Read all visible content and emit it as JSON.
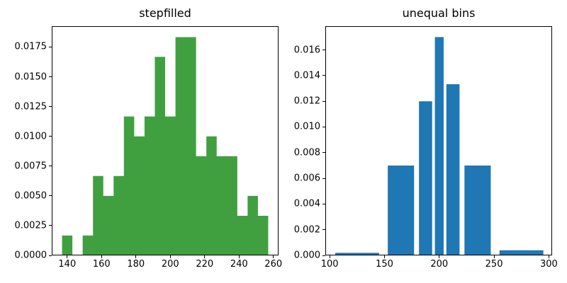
{
  "figure": {
    "background": "#ffffff",
    "text_color": "#000000",
    "spine_color": "#000000"
  },
  "chart_data": [
    {
      "type": "bar",
      "histtype": "stepfilled",
      "title": "stepfilled",
      "color": "#40a040",
      "bins_uniform": {
        "start": 137.0,
        "width": 6.0,
        "count": 20
      },
      "values": [
        0.00167,
        0,
        0.00167,
        0.00667,
        0.005,
        0.00667,
        0.01167,
        0.01,
        0.01167,
        0.01667,
        0.01167,
        0.01833,
        0.01833,
        0.00833,
        0.01,
        0.00833,
        0.00833,
        0.00333,
        0.005,
        0.00333
      ],
      "xlim": [
        131,
        263
      ],
      "ylim": [
        0,
        0.01925
      ],
      "xticks": [
        140,
        160,
        180,
        200,
        220,
        240,
        260
      ],
      "xtick_labels": [
        "140",
        "160",
        "180",
        "200",
        "220",
        "240",
        "260"
      ],
      "yticks": [
        0,
        0.0025,
        0.005,
        0.0075,
        0.01,
        0.0125,
        0.015,
        0.0175
      ],
      "ytick_labels": [
        "0.0000",
        "0.0025",
        "0.0050",
        "0.0075",
        "0.0100",
        "0.0125",
        "0.0150",
        "0.0175"
      ],
      "xlabel": "",
      "ylabel": "",
      "grid": false,
      "legend": false
    },
    {
      "type": "bar",
      "histtype": "bar",
      "title": "unequal bins",
      "color": "#1f77b4",
      "bin_edges": [
        100,
        150,
        180,
        195,
        205,
        220,
        250,
        300
      ],
      "rwidth": 0.8,
      "values": [
        0.0002,
        0.007,
        0.012,
        0.017,
        0.01333,
        0.007,
        0.0004
      ],
      "xlim": [
        96,
        303
      ],
      "ylim": [
        0,
        0.01785
      ],
      "xticks": [
        100,
        150,
        200,
        250,
        300
      ],
      "xtick_labels": [
        "100",
        "150",
        "200",
        "250",
        "300"
      ],
      "yticks": [
        0,
        0.002,
        0.004,
        0.006,
        0.008,
        0.01,
        0.012,
        0.014,
        0.016
      ],
      "ytick_labels": [
        "0.000",
        "0.002",
        "0.004",
        "0.006",
        "0.008",
        "0.010",
        "0.012",
        "0.014",
        "0.016"
      ],
      "xlabel": "",
      "ylabel": "",
      "grid": false,
      "legend": false
    }
  ]
}
